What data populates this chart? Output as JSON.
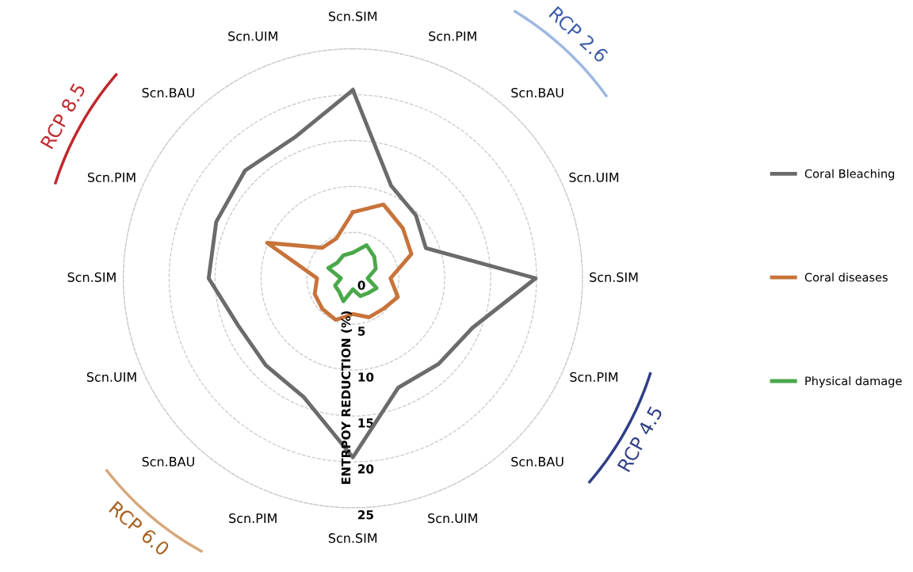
{
  "chart_data": {
    "type": "radar",
    "categories": [
      "Scn.SIM",
      "Scn.PIM",
      "Scn.BAU",
      "Scn.UIM",
      "Scn.SIM",
      "Scn.PIM",
      "Scn.BAU",
      "Scn.UIM",
      "Scn.SIM",
      "Scn.PIM",
      "Scn.BAU",
      "Scn.UIM",
      "Scn.SIM",
      "Scn.PIM",
      "Scn.BAU",
      "Scn.UIM"
    ],
    "series": [
      {
        "name": "Coral Bleaching",
        "color": "#6b6b6b",
        "values": [
          20.5,
          10.9,
          9.7,
          8.6,
          19.9,
          14.1,
          13.2,
          12.9,
          19.5,
          14.0,
          13.4,
          13.5,
          15.7,
          16.1,
          16.6,
          16.6
        ]
      },
      {
        "name": "Coral diseases",
        "color": "#c8733a",
        "values": [
          7.2,
          8.7,
          7.7,
          6.9,
          4.1,
          5.3,
          4.7,
          4.6,
          3.9,
          4.9,
          4.7,
          4.5,
          3.9,
          10.1,
          4.7,
          4.7
        ]
      },
      {
        "name": "Physical damage",
        "color": "#4aa84a",
        "values": [
          2.8,
          3.9,
          3.3,
          2.7,
          1.6,
          2.8,
          2.3,
          2.1,
          1.2,
          2.7,
          2.1,
          2.1,
          1.3,
          2.9,
          2.4,
          2.7
        ]
      }
    ],
    "ylim": [
      0,
      25
    ],
    "yticks": [
      0,
      5,
      10,
      15,
      20,
      25
    ],
    "ylabel": "ENTRPOY REDUCTION (%)",
    "grid": true,
    "legend": "right",
    "marker": "none",
    "line_style": "solid",
    "annotations": [
      "RCP 2.6",
      "RCP 4.5",
      "RCP 6.0",
      "RCP 8.5"
    ]
  }
}
